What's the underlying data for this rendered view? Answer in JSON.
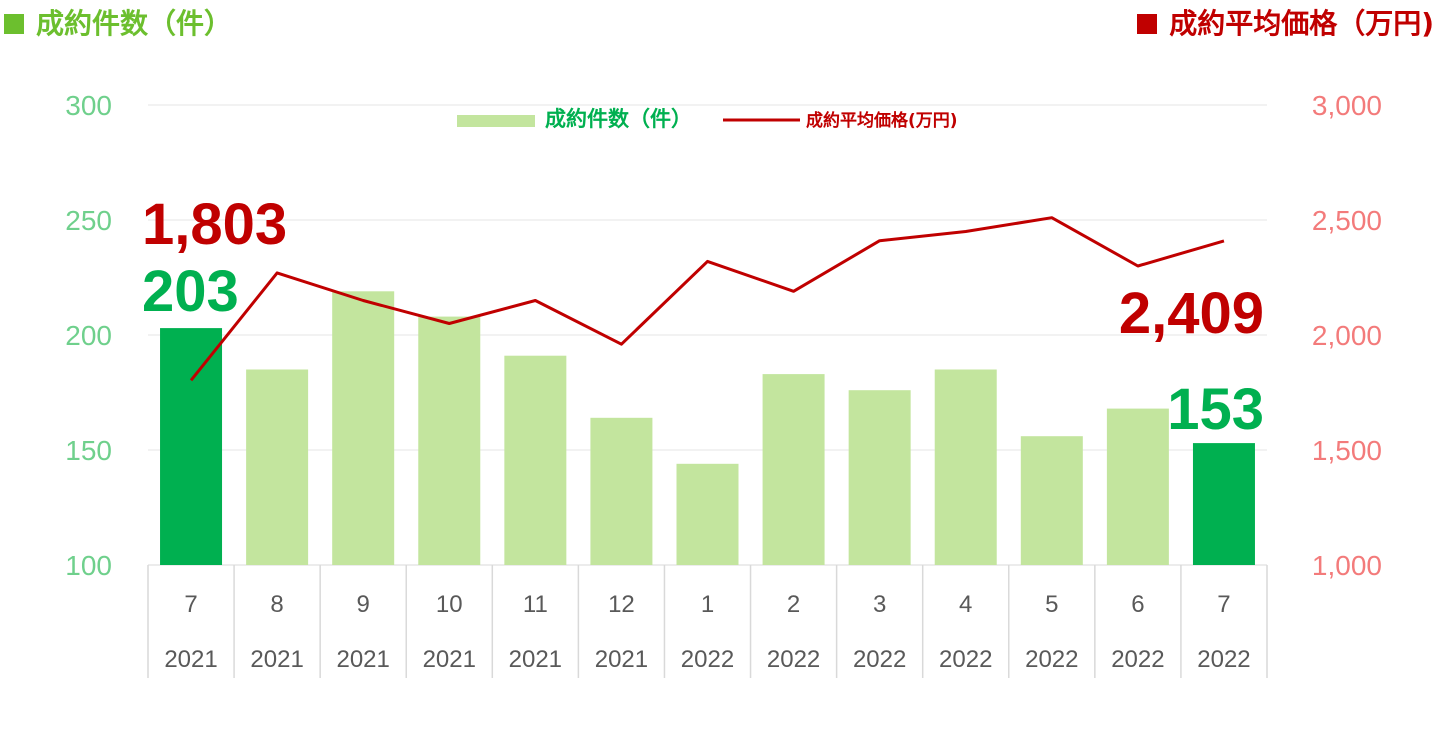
{
  "header": {
    "left_title": "成約件数（件）",
    "right_title": "成約平均価格（万円)"
  },
  "colors": {
    "bar_light": "#c3e59e",
    "bar_highlight": "#00b050",
    "line": "#c00000",
    "left_axis_text": "#6fd08c",
    "right_axis_text": "#f37b7b",
    "header_left": "#6cbf2e",
    "header_right": "#c00000"
  },
  "chart_data": {
    "type": "bar+line",
    "categories": [
      "7",
      "8",
      "9",
      "10",
      "11",
      "12",
      "1",
      "2",
      "3",
      "4",
      "5",
      "6",
      "7"
    ],
    "years": [
      "2021",
      "2021",
      "2021",
      "2021",
      "2021",
      "2021",
      "2022",
      "2022",
      "2022",
      "2022",
      "2022",
      "2022",
      "2022"
    ],
    "series": [
      {
        "name": "成約件数（件）",
        "type": "bar",
        "axis": "left",
        "values": [
          203,
          185,
          219,
          208,
          191,
          164,
          144,
          183,
          176,
          185,
          156,
          168,
          153
        ],
        "highlighted": [
          true,
          false,
          false,
          false,
          false,
          false,
          false,
          false,
          false,
          false,
          false,
          false,
          true
        ]
      },
      {
        "name": "成約平均価格(万円)",
        "type": "line",
        "axis": "right",
        "values": [
          1803,
          2270,
          2150,
          2050,
          2150,
          1960,
          2320,
          2190,
          2410,
          2450,
          2510,
          2300,
          2409
        ]
      }
    ],
    "left_axis": {
      "min": 100,
      "max": 300,
      "ticks": [
        "100",
        "150",
        "200",
        "250",
        "300"
      ]
    },
    "right_axis": {
      "min": 1000,
      "max": 3000,
      "ticks": [
        "1,000",
        "1,500",
        "2,000",
        "2,500",
        "3,000"
      ]
    },
    "annotations": {
      "first_price": "1,803",
      "first_count": "203",
      "last_price": "2,409",
      "last_count": "153"
    },
    "legend_position": "top-center",
    "grid": true
  }
}
